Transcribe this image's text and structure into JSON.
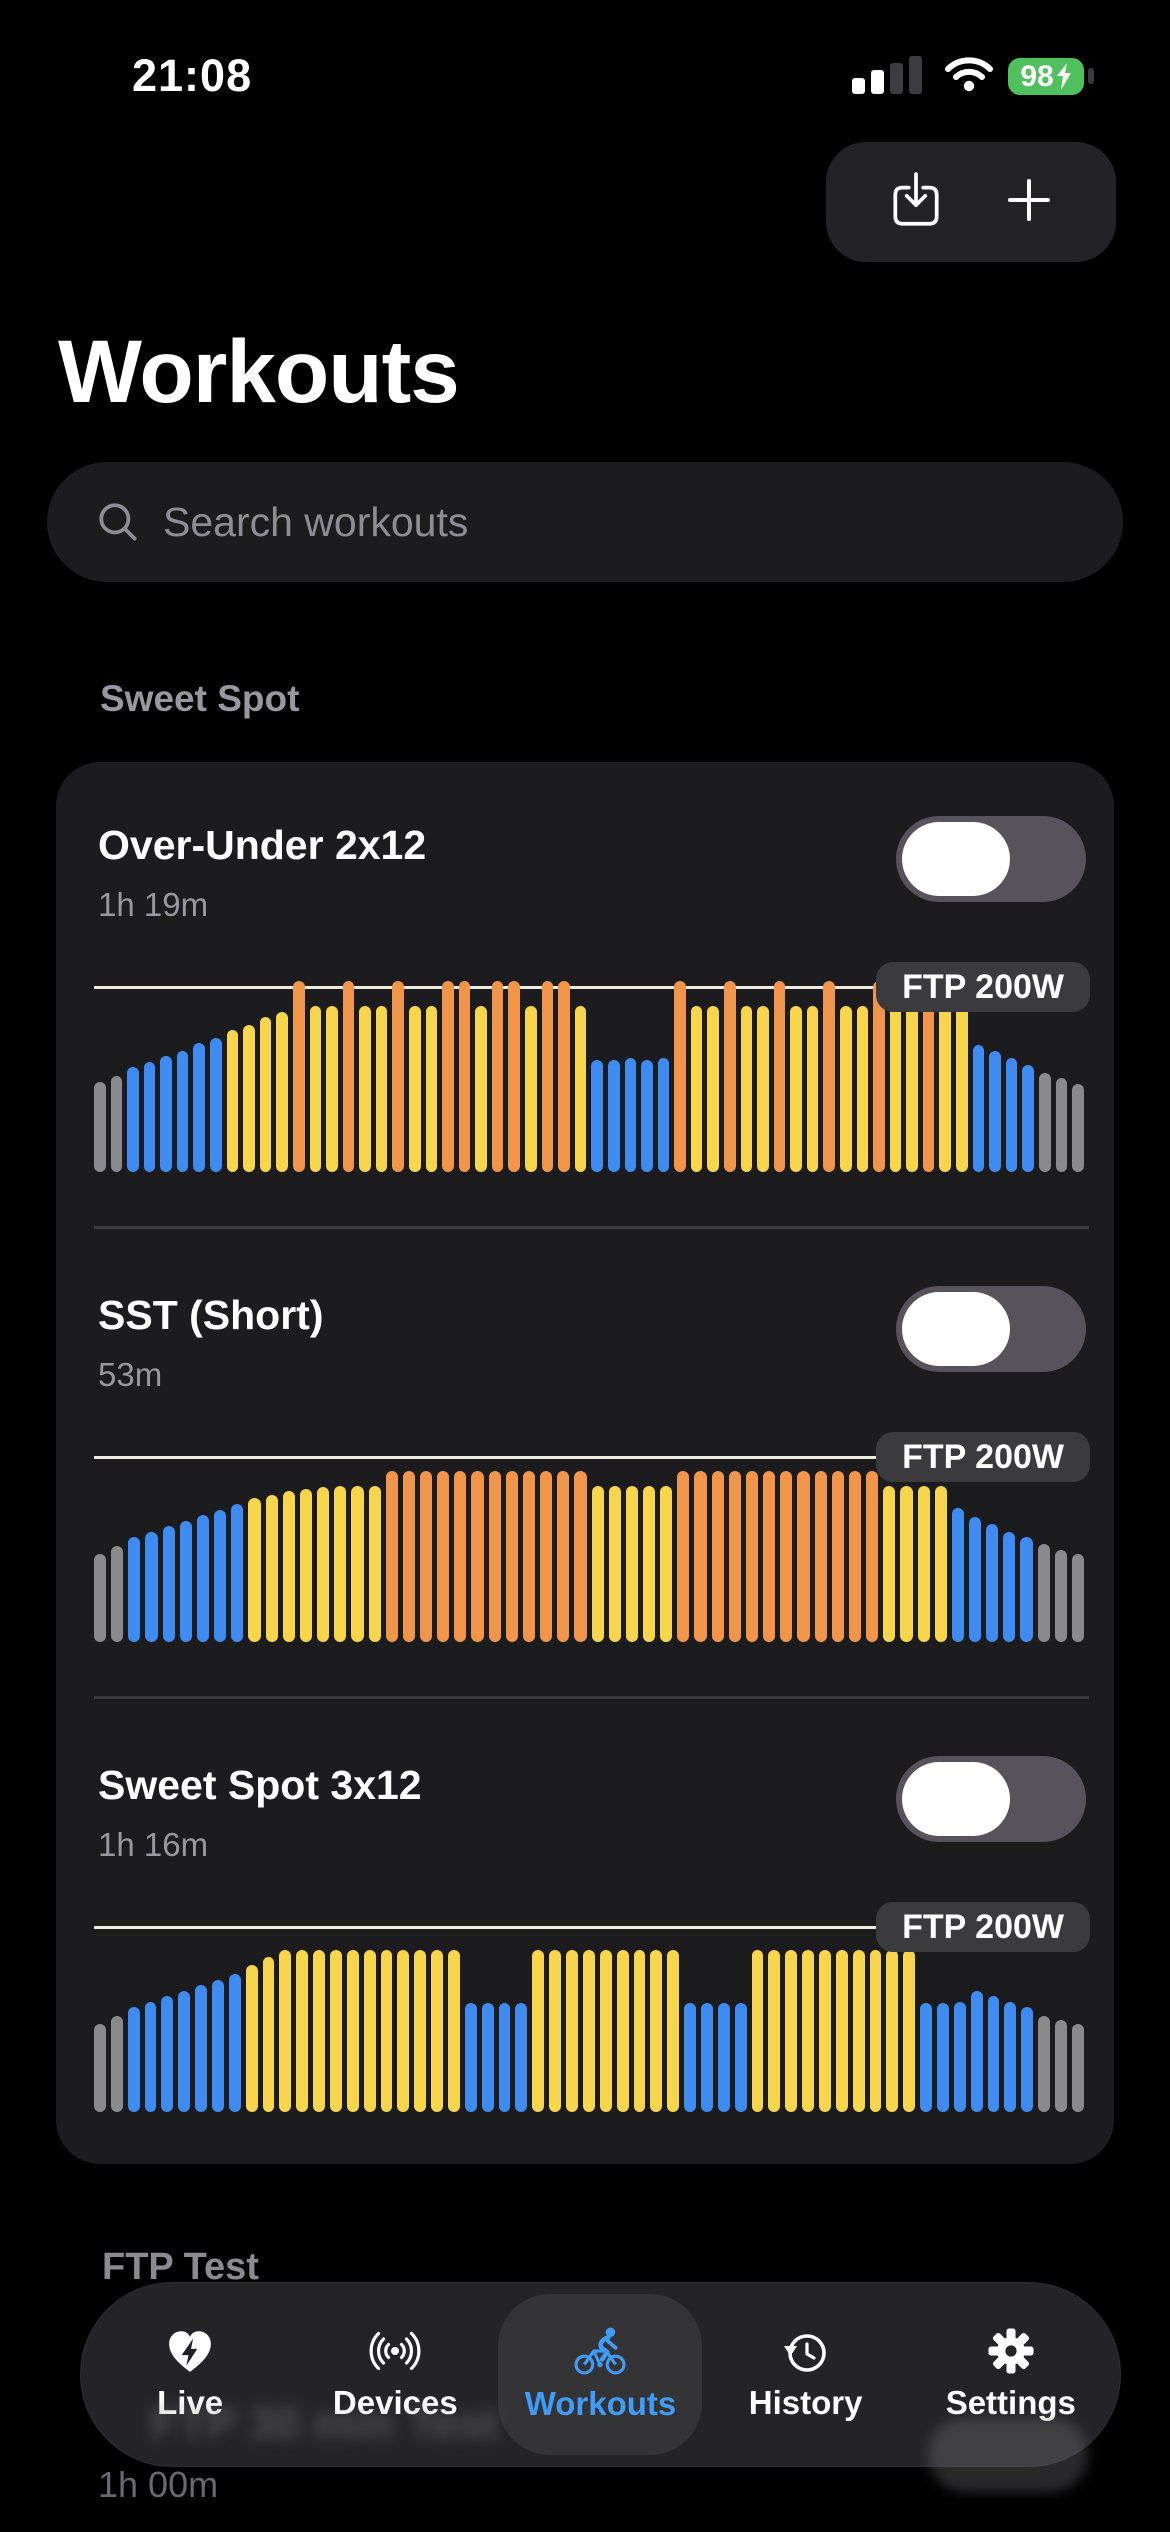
{
  "status_bar": {
    "time": "21:08",
    "battery_percent": "98"
  },
  "toolbar": {
    "import_icon": "square-and-arrow-down",
    "add_icon": "plus"
  },
  "header": {
    "title": "Workouts"
  },
  "search": {
    "placeholder": "Search workouts",
    "value": ""
  },
  "section_header": "Sweet Spot",
  "ftp_badge": "FTP 200W",
  "workouts": [
    {
      "name": "Over-Under 2x12",
      "duration": "1h 19m",
      "enabled": false
    },
    {
      "name": "SST (Short)",
      "duration": "53m",
      "enabled": false
    },
    {
      "name": "Sweet Spot 3x12",
      "duration": "1h 16m",
      "enabled": false
    }
  ],
  "next_section": {
    "title": "FTP Test",
    "ghost_item": "FTP 30 min Test",
    "ghost_duration": "1h 00m"
  },
  "tab_bar": {
    "tabs": [
      {
        "label": "Live",
        "icon": "heart-bolt-icon",
        "active": false
      },
      {
        "label": "Devices",
        "icon": "broadcast-icon",
        "active": false
      },
      {
        "label": "Workouts",
        "icon": "cyclist-icon",
        "active": true
      },
      {
        "label": "History",
        "icon": "clock-history-icon",
        "active": false
      },
      {
        "label": "Settings",
        "icon": "gear-icon",
        "active": false
      }
    ]
  },
  "colors": {
    "page_bg": "#000000",
    "card_bg": "#1C1C1E",
    "search_bg": "#1C1C1E",
    "pill_bg": "#232326",
    "divider": "#3A3A3C",
    "subtitle": "#98989E",
    "section": "#98989E",
    "bar_gray": "#8A8A8E",
    "bar_blue": "#3E8BF2",
    "bar_yellow": "#F7D64B",
    "bar_orange": "#F0954A",
    "ftp_line": "#ECECE2",
    "badge_bg": "#3B3B3E",
    "toggle_track": "#56535B",
    "tab_bg": "#242427",
    "tab_active_bg": "#343437",
    "accent_blue": "#409CF8",
    "battery_green": "#50C05F"
  },
  "chart_data": [
    {
      "title": "Over-Under 2x12",
      "type": "bar",
      "unit": "percent_of_ftp",
      "ftp_line_pct": 100,
      "ftp_watts_label": "FTP 200W",
      "legend": {
        "g": "warmup-cooldown-gray",
        "b": "easy-blue",
        "y": "sweetspot-yellow",
        "o": "over-ftp-orange"
      },
      "bars": [
        [
          "g",
          49
        ],
        [
          "g",
          52
        ],
        [
          "b",
          57
        ],
        [
          "b",
          60
        ],
        [
          "b",
          63
        ],
        [
          "b",
          66
        ],
        [
          "b",
          70
        ],
        [
          "b",
          73
        ],
        [
          "y",
          77
        ],
        [
          "y",
          80
        ],
        [
          "y",
          84
        ],
        [
          "y",
          87
        ],
        [
          "o",
          104
        ],
        [
          "y",
          90
        ],
        [
          "y",
          90
        ],
        [
          "o",
          104
        ],
        [
          "y",
          90
        ],
        [
          "y",
          90
        ],
        [
          "o",
          104
        ],
        [
          "y",
          90
        ],
        [
          "y",
          90
        ],
        [
          "o",
          104
        ],
        [
          "o",
          104
        ],
        [
          "y",
          90
        ],
        [
          "o",
          104
        ],
        [
          "o",
          104
        ],
        [
          "y",
          90
        ],
        [
          "o",
          104
        ],
        [
          "o",
          104
        ],
        [
          "y",
          90
        ],
        [
          "b",
          61
        ],
        [
          "b",
          61
        ],
        [
          "b",
          62
        ],
        [
          "b",
          61
        ],
        [
          "b",
          62
        ],
        [
          "o",
          104
        ],
        [
          "y",
          90
        ],
        [
          "y",
          90
        ],
        [
          "o",
          104
        ],
        [
          "y",
          90
        ],
        [
          "y",
          90
        ],
        [
          "o",
          104
        ],
        [
          "y",
          90
        ],
        [
          "y",
          90
        ],
        [
          "o",
          104
        ],
        [
          "y",
          90
        ],
        [
          "y",
          90
        ],
        [
          "o",
          104
        ],
        [
          "y",
          90
        ],
        [
          "y",
          90
        ],
        [
          "o",
          104
        ],
        [
          "y",
          90
        ],
        [
          "y",
          90
        ],
        [
          "b",
          69
        ],
        [
          "b",
          66
        ],
        [
          "b",
          62
        ],
        [
          "b",
          58
        ],
        [
          "g",
          54
        ],
        [
          "g",
          51
        ],
        [
          "g",
          48
        ]
      ]
    },
    {
      "title": "SST (Short)",
      "type": "bar",
      "unit": "percent_of_ftp",
      "ftp_line_pct": 100,
      "ftp_watts_label": "FTP 200W",
      "bars": [
        [
          "g",
          48
        ],
        [
          "g",
          52
        ],
        [
          "b",
          57
        ],
        [
          "b",
          60
        ],
        [
          "b",
          63
        ],
        [
          "b",
          66
        ],
        [
          "b",
          69
        ],
        [
          "b",
          72
        ],
        [
          "b",
          75
        ],
        [
          "y",
          78
        ],
        [
          "y",
          80
        ],
        [
          "y",
          82
        ],
        [
          "y",
          83
        ],
        [
          "y",
          84
        ],
        [
          "y",
          85
        ],
        [
          "y",
          85
        ],
        [
          "y",
          85
        ],
        [
          "o",
          93
        ],
        [
          "o",
          93
        ],
        [
          "o",
          93
        ],
        [
          "o",
          93
        ],
        [
          "o",
          93
        ],
        [
          "o",
          93
        ],
        [
          "o",
          93
        ],
        [
          "o",
          93
        ],
        [
          "o",
          93
        ],
        [
          "o",
          93
        ],
        [
          "o",
          93
        ],
        [
          "o",
          93
        ],
        [
          "y",
          85
        ],
        [
          "y",
          85
        ],
        [
          "y",
          85
        ],
        [
          "y",
          85
        ],
        [
          "y",
          85
        ],
        [
          "o",
          93
        ],
        [
          "o",
          93
        ],
        [
          "o",
          93
        ],
        [
          "o",
          93
        ],
        [
          "o",
          93
        ],
        [
          "o",
          93
        ],
        [
          "o",
          93
        ],
        [
          "o",
          93
        ],
        [
          "o",
          93
        ],
        [
          "o",
          93
        ],
        [
          "o",
          93
        ],
        [
          "o",
          93
        ],
        [
          "y",
          85
        ],
        [
          "y",
          85
        ],
        [
          "y",
          85
        ],
        [
          "y",
          85
        ],
        [
          "b",
          73
        ],
        [
          "b",
          68
        ],
        [
          "b",
          64
        ],
        [
          "b",
          60
        ],
        [
          "b",
          57
        ],
        [
          "g",
          53
        ],
        [
          "g",
          50
        ],
        [
          "g",
          48
        ]
      ]
    },
    {
      "title": "Sweet Spot 3x12",
      "type": "bar",
      "unit": "percent_of_ftp",
      "ftp_line_pct": 100,
      "ftp_watts_label": "FTP 200W",
      "bars": [
        [
          "g",
          48
        ],
        [
          "g",
          52
        ],
        [
          "b",
          57
        ],
        [
          "b",
          60
        ],
        [
          "b",
          63
        ],
        [
          "b",
          66
        ],
        [
          "b",
          69
        ],
        [
          "b",
          72
        ],
        [
          "b",
          75
        ],
        [
          "y",
          80
        ],
        [
          "y",
          84
        ],
        [
          "y",
          88
        ],
        [
          "y",
          88
        ],
        [
          "y",
          88
        ],
        [
          "y",
          88
        ],
        [
          "y",
          88
        ],
        [
          "y",
          88
        ],
        [
          "y",
          88
        ],
        [
          "y",
          88
        ],
        [
          "y",
          88
        ],
        [
          "y",
          88
        ],
        [
          "y",
          88
        ],
        [
          "b",
          59
        ],
        [
          "b",
          59
        ],
        [
          "b",
          59
        ],
        [
          "b",
          59
        ],
        [
          "y",
          88
        ],
        [
          "y",
          88
        ],
        [
          "y",
          88
        ],
        [
          "y",
          88
        ],
        [
          "y",
          88
        ],
        [
          "y",
          88
        ],
        [
          "y",
          88
        ],
        [
          "y",
          88
        ],
        [
          "y",
          88
        ],
        [
          "b",
          59
        ],
        [
          "b",
          59
        ],
        [
          "b",
          59
        ],
        [
          "b",
          59
        ],
        [
          "y",
          88
        ],
        [
          "y",
          88
        ],
        [
          "y",
          88
        ],
        [
          "y",
          88
        ],
        [
          "y",
          88
        ],
        [
          "y",
          88
        ],
        [
          "y",
          88
        ],
        [
          "y",
          88
        ],
        [
          "y",
          88
        ],
        [
          "y",
          88
        ],
        [
          "b",
          59
        ],
        [
          "b",
          59
        ],
        [
          "b",
          60
        ],
        [
          "b",
          66
        ],
        [
          "b",
          63
        ],
        [
          "b",
          60
        ],
        [
          "b",
          57
        ],
        [
          "g",
          52
        ],
        [
          "g",
          50
        ],
        [
          "g",
          48
        ]
      ]
    }
  ]
}
